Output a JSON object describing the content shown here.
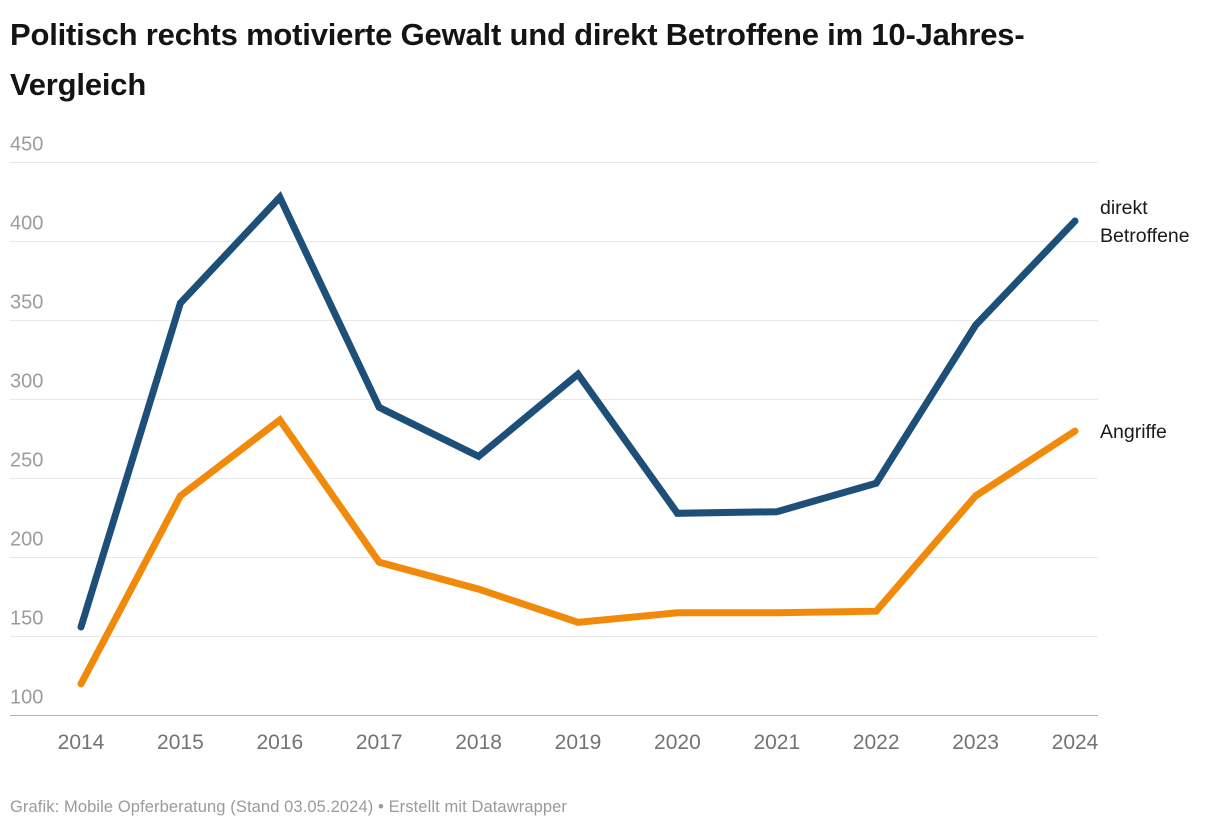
{
  "header": {
    "title": "Politisch rechts motivierte Gewalt und direkt Betroffene im 10-Jahres-Vergleich"
  },
  "footer": {
    "text": "Grafik: Mobile Opferberatung (Stand 03.05.2024) • Erstellt mit Datawrapper"
  },
  "colors": {
    "betroffene_blue": "#1e4f78",
    "angriffe_orange": "#f18a0b",
    "gridline": "#e7e7e7",
    "baseline": "#b3b3b3",
    "ytick_text": "#9c9c9c",
    "xtick_text": "#737373",
    "label_text": "#1a1a1a"
  },
  "chart_data": {
    "type": "line",
    "title": "Politisch rechts motivierte Gewalt und direkt Betroffene im 10-Jahres-Vergleich",
    "x": [
      "2014",
      "2015",
      "2016",
      "2017",
      "2018",
      "2019",
      "2020",
      "2021",
      "2022",
      "2023",
      "2024"
    ],
    "series": [
      {
        "name": "direkt Betroffene",
        "label_lines": [
          "direkt",
          "Betroffene"
        ],
        "color": "#1e4f78",
        "values": [
          156,
          361,
          428,
          295,
          264,
          316,
          228,
          229,
          247,
          347,
          413
        ]
      },
      {
        "name": "Angriffe",
        "label_lines": [
          "Angriffe"
        ],
        "color": "#f18a0b",
        "values": [
          120,
          239,
          287,
          197,
          180,
          159,
          165,
          165,
          166,
          239,
          280
        ]
      }
    ],
    "ylim": [
      100,
      450
    ],
    "yticks": [
      100,
      150,
      200,
      250,
      300,
      350,
      400,
      450
    ],
    "grid": true,
    "legend_position": "right-of-line-ends",
    "xlabel": "",
    "ylabel": ""
  }
}
